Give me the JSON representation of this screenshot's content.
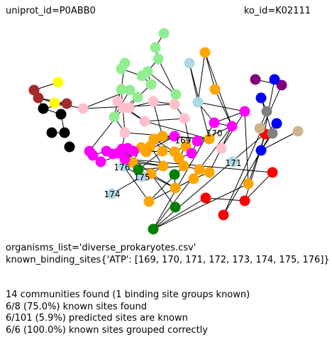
{
  "header": {
    "uniprot": "uniprot_id=P0ABB0",
    "ko": "ko_id=K02111"
  },
  "meta": {
    "organisms": "organisms_list='diverse_prokaryotes.csv'",
    "binding_sites": "known_binding_sites{'ATP': [169, 170, 171, 172, 173, 174, 175, 176]}"
  },
  "stats": [
    "14 communities found (1 binding site groups known)",
    "6/8 (75.0%) known sites found",
    "6/101 (5.9%) predicted sites are known",
    "6/6 (100.0%) known sites grouped correctly"
  ],
  "node_labels": [
    "169",
    "170",
    "171",
    "176",
    "175",
    "174"
  ],
  "colors": {
    "orange": "#ffa500",
    "magenta": "#ff00ff",
    "lightgreen": "#90ee90",
    "pink": "#ffc0cb",
    "lightblue": "#add8e6",
    "green": "#008000",
    "red": "#ff0000",
    "blue": "#0000ff",
    "black": "#000000",
    "brown": "#a52a2a",
    "yellow": "#ffff00",
    "purple": "#800080",
    "gray": "#808080",
    "tan": "#d2b48c"
  }
}
